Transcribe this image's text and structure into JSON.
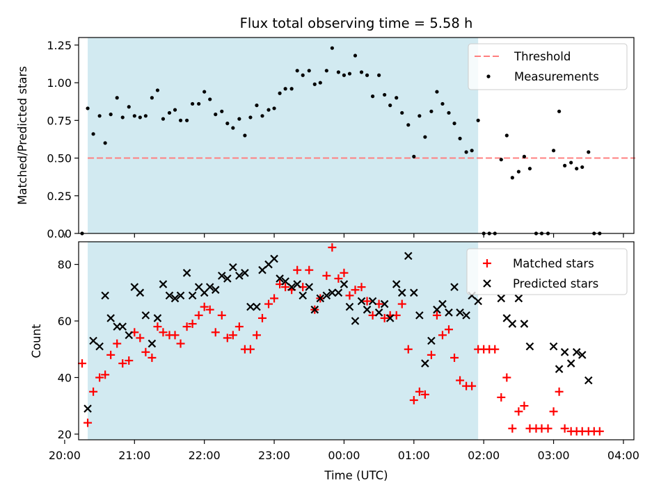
{
  "chart_data": [
    {
      "type": "scatter",
      "title": "Flux total observing time = 5.58 h",
      "xlabel": "",
      "ylabel": "Matched/Predicted stars",
      "xlim": [
        20.2,
        28.15
      ],
      "ylim": [
        0,
        1.3
      ],
      "yticks": [
        0.0,
        0.25,
        0.5,
        0.75,
        1.0,
        1.25
      ],
      "ytick_labels": [
        "0.00",
        "0.25",
        "0.50",
        "0.75",
        "1.00",
        "1.25"
      ],
      "shaded_span": {
        "start": 20.33,
        "end": 25.92
      },
      "threshold": {
        "name": "Threshold",
        "value": 0.5,
        "x_start": 20.33,
        "x_end": 28.17,
        "color": "#ff7f7f"
      },
      "legend": {
        "position": "upper right",
        "entries": [
          "Threshold",
          "Measurements"
        ]
      },
      "series": [
        {
          "name": "Measurements",
          "color": "#000000",
          "x": [
            20.25,
            20.33,
            20.41,
            20.5,
            20.58,
            20.66,
            20.75,
            20.83,
            20.92,
            21.0,
            21.08,
            21.16,
            21.25,
            21.33,
            21.41,
            21.5,
            21.58,
            21.66,
            21.75,
            21.83,
            21.92,
            22.0,
            22.08,
            22.16,
            22.25,
            22.33,
            22.41,
            22.5,
            22.58,
            22.66,
            22.75,
            22.83,
            22.92,
            23.0,
            23.08,
            23.16,
            23.25,
            23.33,
            23.41,
            23.5,
            23.58,
            23.66,
            23.75,
            23.83,
            23.92,
            24.0,
            24.08,
            24.16,
            24.25,
            24.33,
            24.41,
            24.5,
            24.58,
            24.66,
            24.75,
            24.83,
            24.92,
            25.0,
            25.08,
            25.16,
            25.25,
            25.33,
            25.41,
            25.5,
            25.58,
            25.66,
            25.75,
            25.83,
            25.92,
            26.0,
            26.08,
            26.16,
            26.25,
            26.33,
            26.41,
            26.5,
            26.58,
            26.66,
            26.75,
            26.83,
            26.92,
            27.0,
            27.08,
            27.16,
            27.25,
            27.33,
            27.41,
            27.5,
            27.58,
            27.66
          ],
          "y": [
            0.0,
            0.83,
            0.66,
            0.78,
            0.6,
            0.79,
            0.9,
            0.77,
            0.84,
            0.78,
            0.77,
            0.78,
            0.9,
            0.95,
            0.76,
            0.8,
            0.82,
            0.75,
            0.75,
            0.86,
            0.86,
            0.94,
            0.89,
            0.79,
            0.81,
            0.73,
            0.7,
            0.76,
            0.65,
            0.77,
            0.85,
            0.78,
            0.82,
            0.83,
            0.93,
            0.96,
            0.96,
            1.08,
            1.05,
            1.08,
            0.99,
            1.0,
            1.08,
            1.23,
            1.07,
            1.05,
            1.06,
            1.18,
            1.07,
            1.05,
            0.91,
            1.05,
            0.92,
            0.85,
            0.9,
            0.8,
            0.72,
            0.51,
            0.78,
            0.64,
            0.81,
            0.94,
            0.86,
            0.8,
            0.73,
            0.63,
            0.54,
            0.55,
            0.75,
            0.0,
            0.0,
            0.0,
            0.49,
            0.65,
            0.37,
            0.41,
            0.51,
            0.43,
            0.0,
            0.0,
            0.0,
            0.55,
            0.81,
            0.45,
            0.47,
            0.43,
            0.44,
            0.54,
            0.0,
            0.0
          ]
        }
      ]
    },
    {
      "type": "scatter",
      "title": "",
      "xlabel": "Time (UTC)",
      "ylabel": "Count",
      "xlim": [
        20.2,
        28.15
      ],
      "ylim": [
        18,
        88
      ],
      "yticks": [
        20,
        40,
        60,
        80
      ],
      "ytick_labels": [
        "20",
        "40",
        "60",
        "80"
      ],
      "xticks": [
        20.0,
        21.0,
        22.0,
        23.0,
        24.0,
        25.0,
        26.0,
        27.0,
        28.0
      ],
      "xtick_labels": [
        "20:00",
        "21:00",
        "22:00",
        "23:00",
        "00:00",
        "01:00",
        "02:00",
        "03:00",
        "04:00"
      ],
      "shaded_span": {
        "start": 20.33,
        "end": 25.92
      },
      "legend": {
        "position": "upper right",
        "entries": [
          "Matched stars",
          "Predicted stars"
        ]
      },
      "series": [
        {
          "name": "Matched stars",
          "marker": "plus",
          "color": "#ff0000",
          "x": [
            20.25,
            20.33,
            20.41,
            20.5,
            20.58,
            20.66,
            20.75,
            20.83,
            20.92,
            21.0,
            21.08,
            21.16,
            21.25,
            21.33,
            21.41,
            21.5,
            21.58,
            21.66,
            21.75,
            21.83,
            21.92,
            22.0,
            22.08,
            22.16,
            22.25,
            22.33,
            22.41,
            22.5,
            22.58,
            22.66,
            22.75,
            22.83,
            22.92,
            23.0,
            23.08,
            23.16,
            23.25,
            23.33,
            23.41,
            23.5,
            23.58,
            23.66,
            23.75,
            23.83,
            23.92,
            24.0,
            24.08,
            24.16,
            24.25,
            24.33,
            24.41,
            24.5,
            24.58,
            24.66,
            24.75,
            24.83,
            24.92,
            25.0,
            25.08,
            25.16,
            25.25,
            25.33,
            25.41,
            25.5,
            25.58,
            25.66,
            25.75,
            25.83,
            25.92,
            26.0,
            26.08,
            26.16,
            26.25,
            26.33,
            26.41,
            26.5,
            26.58,
            26.66,
            26.75,
            26.83,
            26.92,
            27.0,
            27.08,
            27.16,
            27.25,
            27.33,
            27.41,
            27.5,
            27.58,
            27.66
          ],
          "y": [
            45,
            24,
            35,
            40,
            41,
            48,
            52,
            45,
            46,
            56,
            54,
            49,
            47,
            58,
            56,
            55,
            55,
            52,
            58,
            59,
            62,
            65,
            64,
            56,
            62,
            54,
            55,
            58,
            50,
            50,
            55,
            61,
            66,
            68,
            73,
            72,
            71,
            78,
            72,
            78,
            64,
            68,
            76,
            86,
            75,
            77,
            69,
            71,
            72,
            67,
            62,
            66,
            61,
            62,
            62,
            66,
            50,
            32,
            35,
            34,
            48,
            62,
            55,
            57,
            47,
            39,
            37,
            37,
            50,
            50,
            50,
            50,
            33,
            40,
            22,
            28,
            30,
            22,
            22,
            22,
            22,
            28,
            35,
            22,
            21,
            21,
            21,
            21,
            21,
            21
          ]
        },
        {
          "name": "Predicted stars",
          "marker": "x",
          "color": "#000000",
          "x": [
            20.33,
            20.41,
            20.5,
            20.58,
            20.66,
            20.75,
            20.83,
            20.92,
            21.0,
            21.08,
            21.16,
            21.25,
            21.33,
            21.41,
            21.5,
            21.58,
            21.66,
            21.75,
            21.83,
            21.92,
            22.0,
            22.08,
            22.16,
            22.25,
            22.33,
            22.41,
            22.5,
            22.58,
            22.66,
            22.75,
            22.83,
            22.92,
            23.0,
            23.08,
            23.16,
            23.25,
            23.33,
            23.41,
            23.5,
            23.58,
            23.66,
            23.75,
            23.83,
            23.92,
            24.0,
            24.08,
            24.16,
            24.25,
            24.33,
            24.41,
            24.5,
            24.58,
            24.66,
            24.75,
            24.83,
            24.92,
            25.0,
            25.08,
            25.16,
            25.25,
            25.33,
            25.41,
            25.5,
            25.58,
            25.66,
            25.75,
            25.83,
            25.92,
            26.25,
            26.33,
            26.41,
            26.5,
            26.58,
            26.66,
            27.0,
            27.08,
            27.16,
            27.25,
            27.33,
            27.41,
            27.5
          ],
          "y": [
            29,
            53,
            51,
            69,
            61,
            58,
            58,
            55,
            72,
            70,
            62,
            52,
            61,
            73,
            69,
            68,
            69,
            77,
            69,
            72,
            70,
            72,
            71,
            76,
            75,
            79,
            76,
            77,
            65,
            65,
            78,
            80,
            82,
            75,
            74,
            72,
            73,
            69,
            72,
            64,
            68,
            69,
            70,
            70,
            73,
            65,
            60,
            67,
            64,
            67,
            63,
            66,
            61,
            73,
            70,
            83,
            70,
            62,
            45,
            53,
            64,
            66,
            63,
            72,
            63,
            62,
            69,
            67,
            68,
            61,
            59,
            68,
            59,
            51,
            51,
            43,
            49,
            45,
            49,
            48,
            39
          ]
        }
      ]
    }
  ]
}
